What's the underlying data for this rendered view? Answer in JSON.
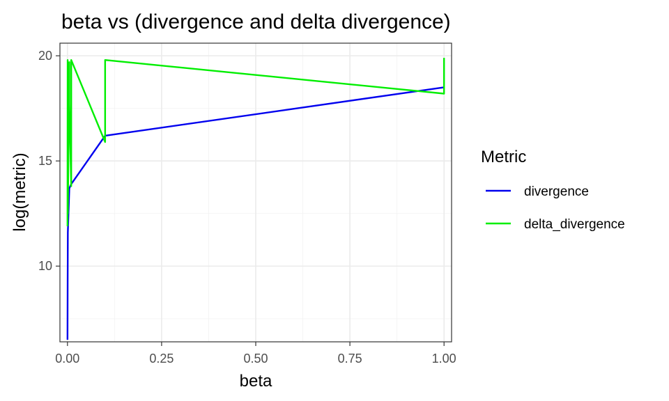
{
  "chart_data": {
    "type": "line",
    "title": "beta vs (divergence and delta divergence)",
    "xlabel": "beta",
    "ylabel": "log(metric)",
    "xlim": [
      -0.02,
      1.02
    ],
    "ylim": [
      6.4,
      20.6
    ],
    "x_ticks": [
      0.0,
      0.25,
      0.5,
      0.75,
      1.0
    ],
    "x_tick_labels": [
      "0.00",
      "0.25",
      "0.50",
      "0.75",
      "1.00"
    ],
    "y_ticks": [
      10,
      15,
      20
    ],
    "y_tick_labels": [
      "10",
      "15",
      "20"
    ],
    "grid": true,
    "legend": {
      "title": "Metric",
      "position": "right"
    },
    "series": [
      {
        "name": "divergence",
        "color": "#0000EE",
        "x": [
          0.0001,
          0.0005,
          0.001,
          0.005,
          0.01,
          0.1,
          0.1,
          1.0
        ],
        "y": [
          6.5,
          9.3,
          11.6,
          13.7,
          13.9,
          16.2,
          16.2,
          18.5
        ]
      },
      {
        "name": "delta_divergence",
        "color": "#00EE00",
        "x": [
          0.0001,
          0.0005,
          0.001,
          0.005,
          0.005,
          0.01,
          0.01,
          0.1,
          0.1,
          0.1,
          1.0,
          1.0,
          1.0
        ],
        "y": [
          11.9,
          19.8,
          12.5,
          19.7,
          17.7,
          13.8,
          19.8,
          15.9,
          16.1,
          19.8,
          18.2,
          18.5,
          19.9
        ]
      }
    ]
  }
}
